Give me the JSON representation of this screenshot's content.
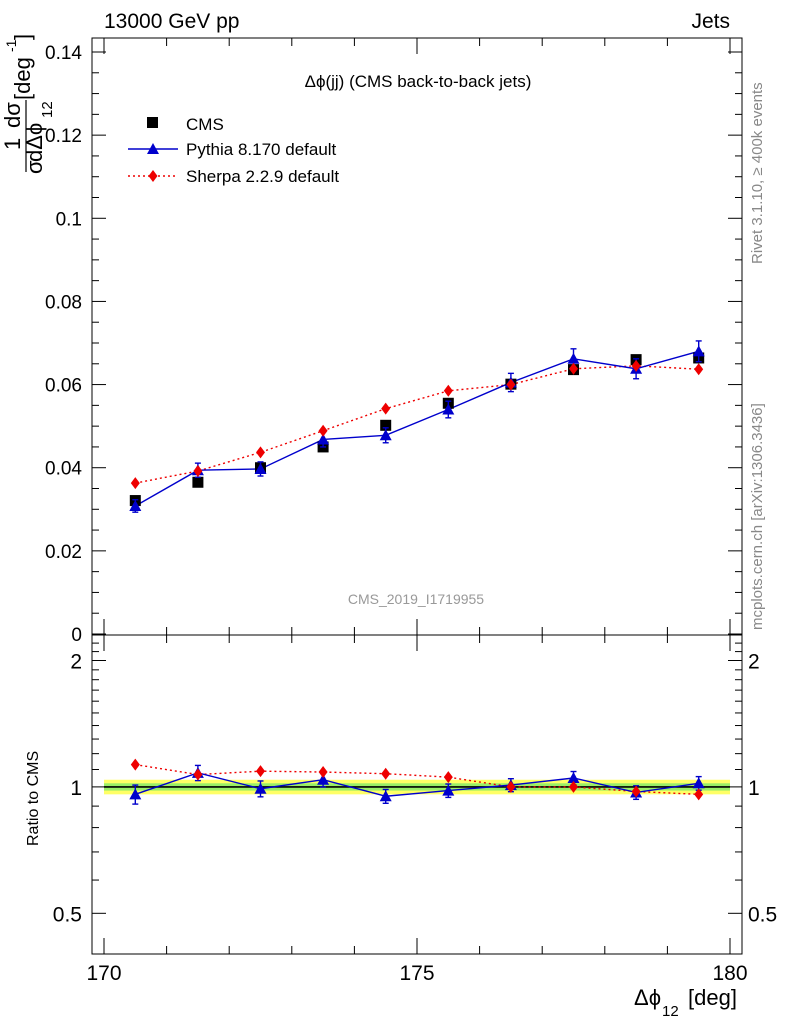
{
  "header": {
    "left": "13000 GeV pp",
    "right": "Jets"
  },
  "side_labels": {
    "rivet": "Rivet 3.1.10, ≥ 400k events",
    "mcplots": "mcplots.cern.ch [arXiv:1306.3436]"
  },
  "plot_title": "Δϕ(jj) (CMS back-to-back jets)",
  "watermark": "CMS_2019_I1719955",
  "colors": {
    "cms": "#000000",
    "pythia": "#0000cc",
    "sherpa": "#ee0000",
    "band_outer": "#ffff66",
    "band_inner": "#99ee66"
  },
  "chart_data": [
    {
      "type": "scatter",
      "panel": "main",
      "ylabel": "1/σ dσ/dΔϕ12 [deg⁻¹]",
      "ylabel_parts": {
        "one": "1",
        "dsigma": "dσ",
        "sigma": "σ",
        "dphi": "dΔϕ",
        "sub": "12",
        "unit": "[deg",
        "unit_sup": "-1",
        "unit_close": "]"
      },
      "xlim": [
        170,
        180
      ],
      "ylim": [
        0,
        0.14
      ],
      "yticks": [
        0,
        0.02,
        0.04,
        0.06,
        0.08,
        0.1,
        0.12,
        0.14
      ],
      "ytick_labels": [
        "0",
        "0.02",
        "0.04",
        "0.06",
        "0.08",
        "0.1",
        "0.12",
        "0.14"
      ],
      "x": [
        170.5,
        171.5,
        172.5,
        173.5,
        174.5,
        175.5,
        176.5,
        177.5,
        178.5,
        179.5
      ],
      "legend_placement": "top-left",
      "series": [
        {
          "name": "CMS",
          "values": [
            0.0321,
            0.0365,
            0.04,
            0.045,
            0.0502,
            0.0555,
            0.0601,
            0.0636,
            0.066,
            0.0664
          ]
        },
        {
          "name": "Pythia 8.170 default",
          "values": [
            0.0308,
            0.0394,
            0.0397,
            0.0468,
            0.0478,
            0.054,
            0.0605,
            0.0662,
            0.0638,
            0.068
          ],
          "errors": [
            0.0015,
            0.0017,
            0.0017,
            0.0018,
            0.0018,
            0.002,
            0.0022,
            0.0024,
            0.0024,
            0.0025
          ]
        },
        {
          "name": "Sherpa 2.2.9 default",
          "values": [
            0.0363,
            0.0392,
            0.0437,
            0.0489,
            0.0542,
            0.0585,
            0.06,
            0.0638,
            0.0645,
            0.0637
          ]
        }
      ]
    },
    {
      "type": "scatter",
      "panel": "ratio",
      "ylabel": "Ratio to CMS",
      "xlabel": "Δϕ12 [deg]",
      "xlabel_parts": {
        "phi": "Δϕ",
        "sub": "12",
        "unit": "[deg]"
      },
      "xlim": [
        170,
        180
      ],
      "xticks": [
        170,
        175,
        180
      ],
      "xtick_labels": [
        "170",
        "175",
        "180"
      ],
      "ylim": [
        0.4,
        2.3
      ],
      "yscale": "log",
      "yticks": [
        0.5,
        1,
        2
      ],
      "ytick_labels": [
        "0.5",
        "1",
        "2"
      ],
      "x": [
        170.5,
        171.5,
        172.5,
        173.5,
        174.5,
        175.5,
        176.5,
        177.5,
        178.5,
        179.5
      ],
      "reference_band": {
        "inner": 0.02,
        "outer": 0.04
      },
      "series": [
        {
          "name": "Pythia 8.170 default",
          "values": [
            0.96,
            1.08,
            0.99,
            1.04,
            0.95,
            0.98,
            1.01,
            1.05,
            0.97,
            1.02
          ],
          "errors": [
            0.05,
            0.045,
            0.043,
            0.04,
            0.036,
            0.036,
            0.036,
            0.038,
            0.036,
            0.038
          ]
        },
        {
          "name": "Sherpa 2.2.9 default",
          "values": [
            1.13,
            1.07,
            1.09,
            1.085,
            1.075,
            1.055,
            1.0,
            1.0,
            0.975,
            0.96
          ]
        }
      ]
    }
  ]
}
